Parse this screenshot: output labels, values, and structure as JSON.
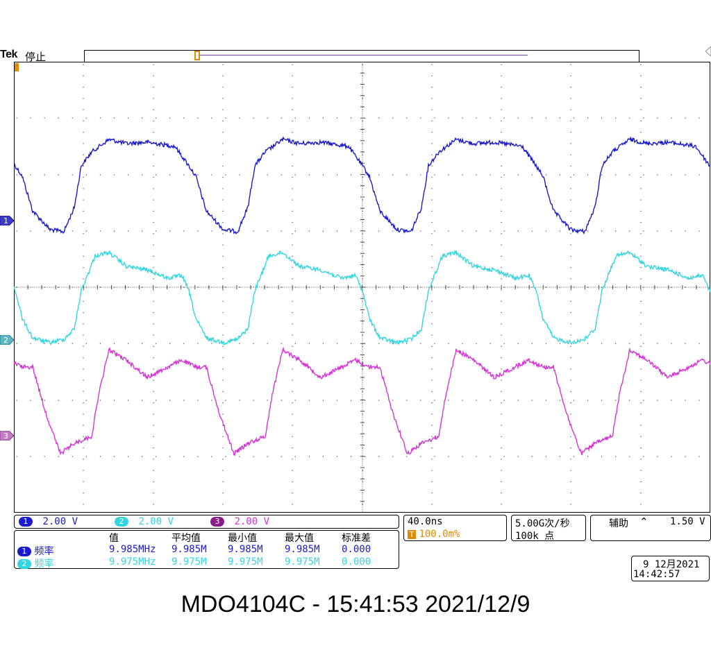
{
  "header": {
    "brand": "Tek",
    "status": "停止"
  },
  "colors": {
    "ch1": "#1a1acc",
    "ch2": "#33d6e0",
    "ch3": "#d633d6",
    "trigger": "#e08a00",
    "ch3_chip": "#8a1a8a"
  },
  "display": {
    "channel_markers": [
      {
        "label": "1",
        "name": "ch1"
      },
      {
        "label": "2",
        "name": "ch2"
      },
      {
        "label": "3",
        "name": "ch3"
      }
    ]
  },
  "channels": [
    {
      "num": "1",
      "scale": "2.00 V"
    },
    {
      "num": "2",
      "scale": "2.00 V"
    },
    {
      "num": "3",
      "scale": "2.00 V"
    }
  ],
  "measurements": {
    "headers": [
      "值",
      "平均值",
      "最小值",
      "最大值",
      "标准差"
    ],
    "rows": [
      {
        "ch": "1",
        "name": "频率",
        "value": "9.985MHz",
        "mean": "9.985M",
        "min": "9.985M",
        "max": "9.985M",
        "std": "0.000"
      },
      {
        "ch": "2",
        "name": "频率",
        "value": "9.975MHz",
        "mean": "9.975M",
        "min": "9.975M",
        "max": "9.975M",
        "std": "0.000"
      }
    ]
  },
  "timebase": {
    "scale": "40.0ns",
    "trigger_pos_icon": "T",
    "trigger_pos": "100.0m%"
  },
  "acquisition": {
    "rate": "5.00G次/秒",
    "points": "100k 点"
  },
  "trigger": {
    "source": "辅助",
    "slope_icon": "falling-edge-icon",
    "slope_glyph": "⌃",
    "level": "1.50 V"
  },
  "datetime": {
    "date": "9 12月2021",
    "time": "14:42:57"
  },
  "caption": "MDO4104C - 15:41:53   2021/12/9"
}
